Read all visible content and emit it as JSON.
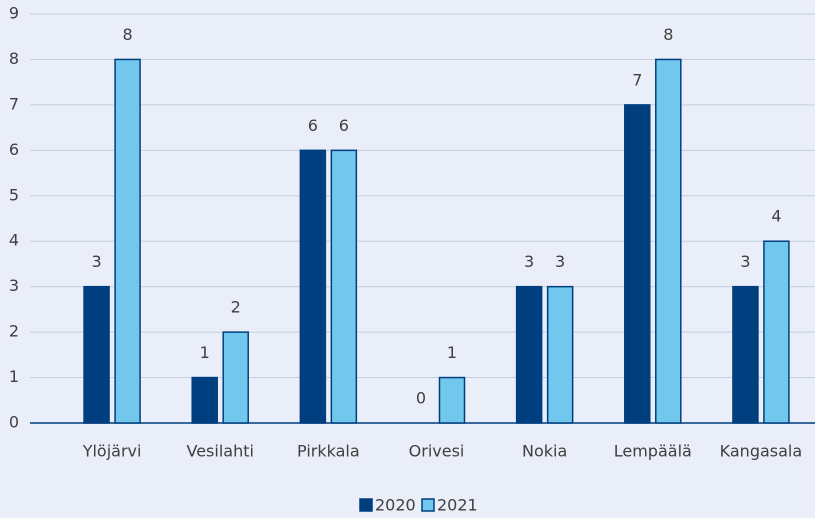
{
  "chart_data": {
    "type": "bar",
    "categories": [
      "Ylöjärvi",
      "Vesilahti",
      "Pirkkala",
      "Orivesi",
      "Nokia",
      "Lempäälä",
      "Kangasala"
    ],
    "series": [
      {
        "name": "2020",
        "color": "#003f7f",
        "values": [
          3,
          1,
          6,
          0,
          3,
          7,
          3
        ]
      },
      {
        "name": "2021",
        "color": "#72c7ec",
        "values": [
          8,
          2,
          6,
          1,
          3,
          8,
          4
        ]
      }
    ],
    "ylim": [
      0,
      9
    ],
    "yticks": [
      0,
      1,
      2,
      3,
      4,
      5,
      6,
      7,
      8,
      9
    ],
    "grid": true,
    "legend": "bottom"
  }
}
